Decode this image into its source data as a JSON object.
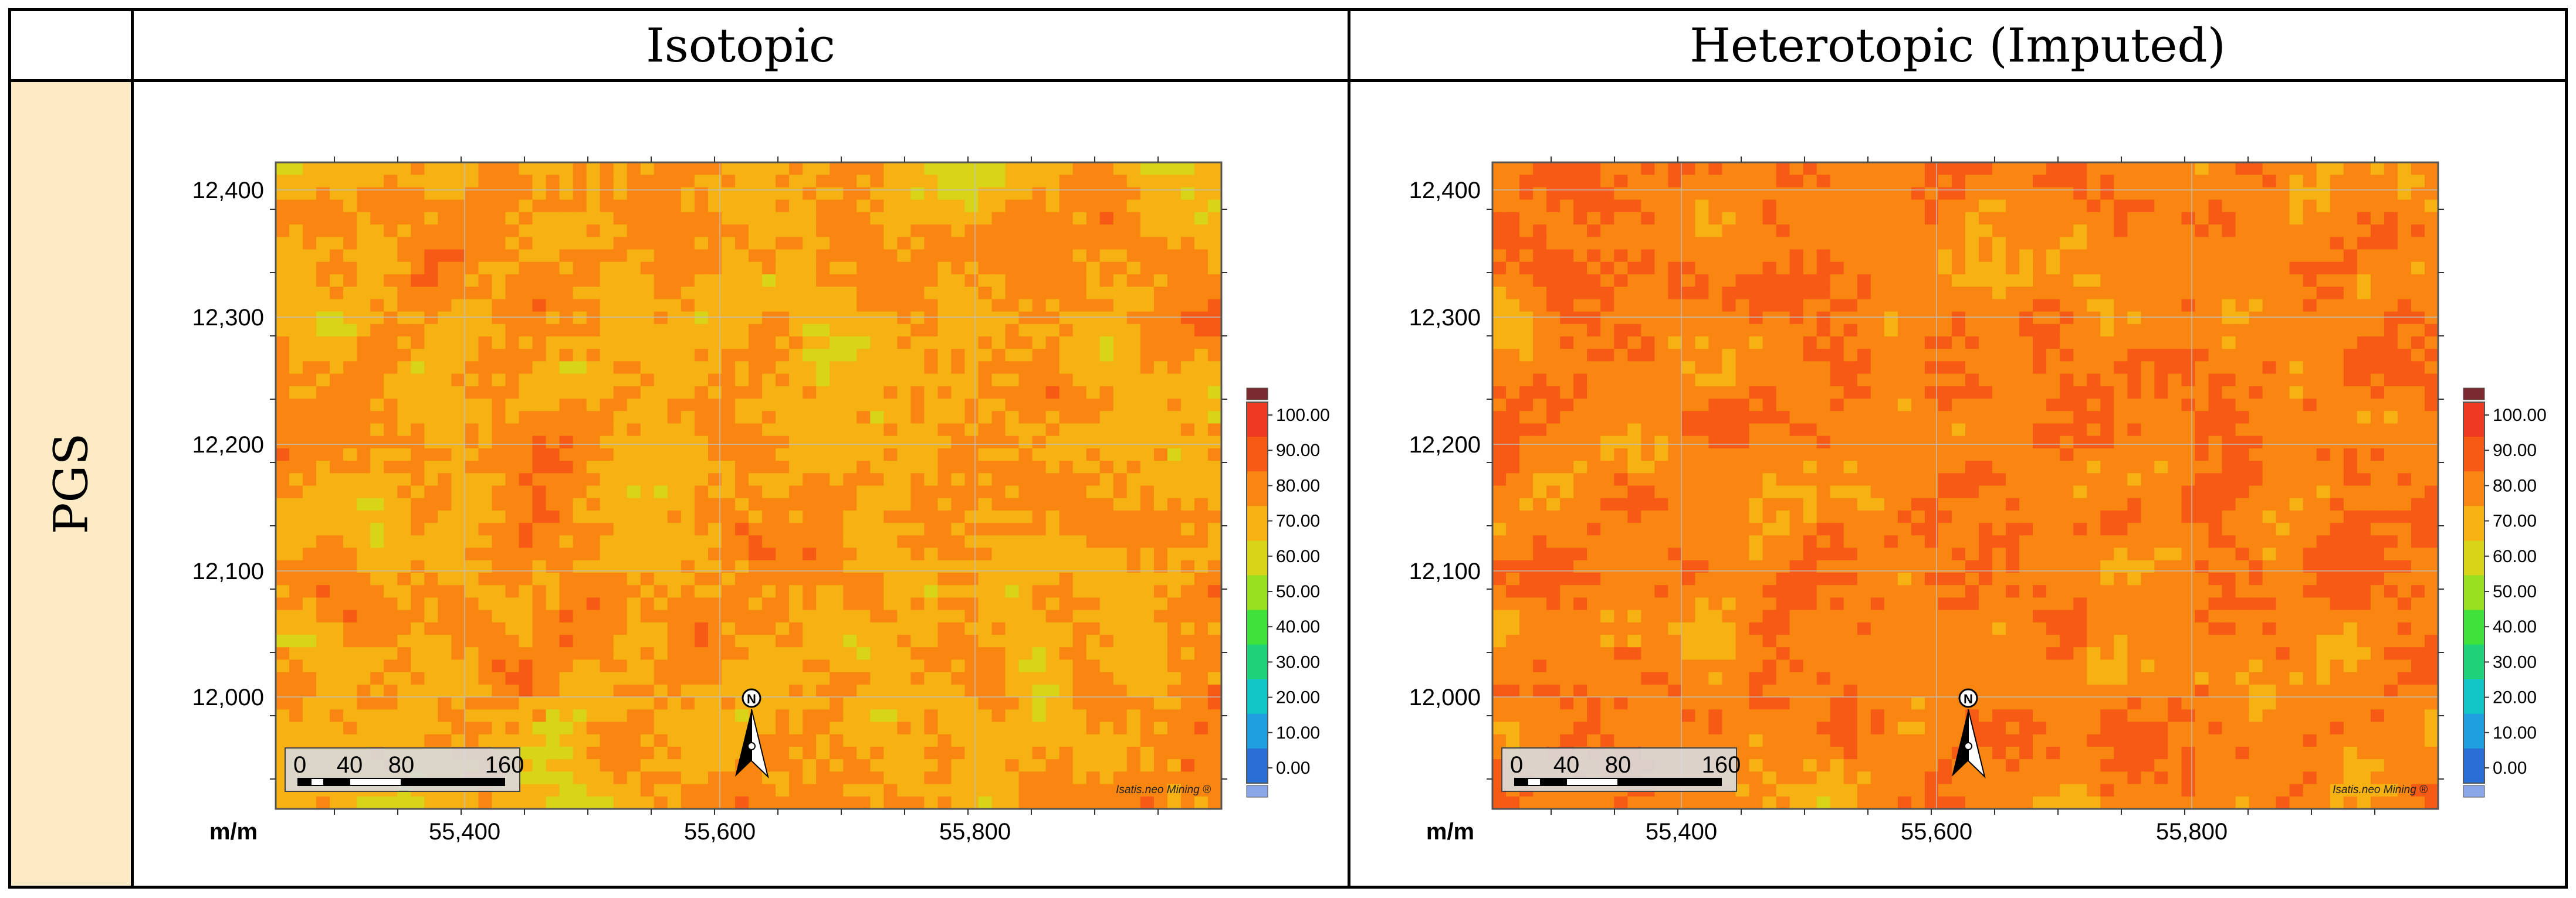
{
  "columns": [
    {
      "header": "Isotopic"
    },
    {
      "header": "Heterotopic (Imputed)"
    }
  ],
  "rows": [
    {
      "header": "PGS"
    }
  ],
  "maps": [
    {
      "title": "Isotopic",
      "y_ticks": [
        "12,400",
        "12,300",
        "12,200",
        "12,100",
        "12,000"
      ],
      "x_ticks": [
        "55,400",
        "55,600",
        "55,800"
      ],
      "axis_label": "m/m",
      "colorbar_labels": [
        "100.00",
        "90.00",
        "80.00",
        "70.00",
        "60.00",
        "50.00",
        "40.00",
        "30.00",
        "20.00",
        "10.00",
        "0.00"
      ],
      "scale_labels": [
        "0",
        "40",
        "80",
        "160"
      ],
      "north_label": "N",
      "watermark": "Isatis.neo Mining ®",
      "field": {
        "range": [
          0,
          100
        ],
        "mean": 74,
        "spread": 15,
        "seed": 11
      }
    },
    {
      "title": "Heterotopic (Imputed)",
      "y_ticks": [
        "12,400",
        "12,300",
        "12,200",
        "12,100",
        "12,000"
      ],
      "x_ticks": [
        "55,400",
        "55,600",
        "55,800"
      ],
      "axis_label": "m/m",
      "colorbar_labels": [
        "100.00",
        "90.00",
        "80.00",
        "70.00",
        "60.00",
        "50.00",
        "40.00",
        "30.00",
        "20.00",
        "10.00",
        "0.00"
      ],
      "scale_labels": [
        "0",
        "40",
        "80",
        "160"
      ],
      "north_label": "N",
      "watermark": "Isatis.neo Mining ®",
      "field": {
        "range": [
          0,
          100
        ],
        "mean": 82,
        "spread": 13,
        "seed": 47
      }
    }
  ],
  "colors": {
    "row_header_bg": "#fdebc6",
    "scale": [
      "#2a6fd6",
      "#1f9fe0",
      "#12c6c8",
      "#1fd27a",
      "#3ee23a",
      "#98e020",
      "#d8d418",
      "#f6b212",
      "#fa8612",
      "#f65a14",
      "#ee3a20"
    ]
  }
}
